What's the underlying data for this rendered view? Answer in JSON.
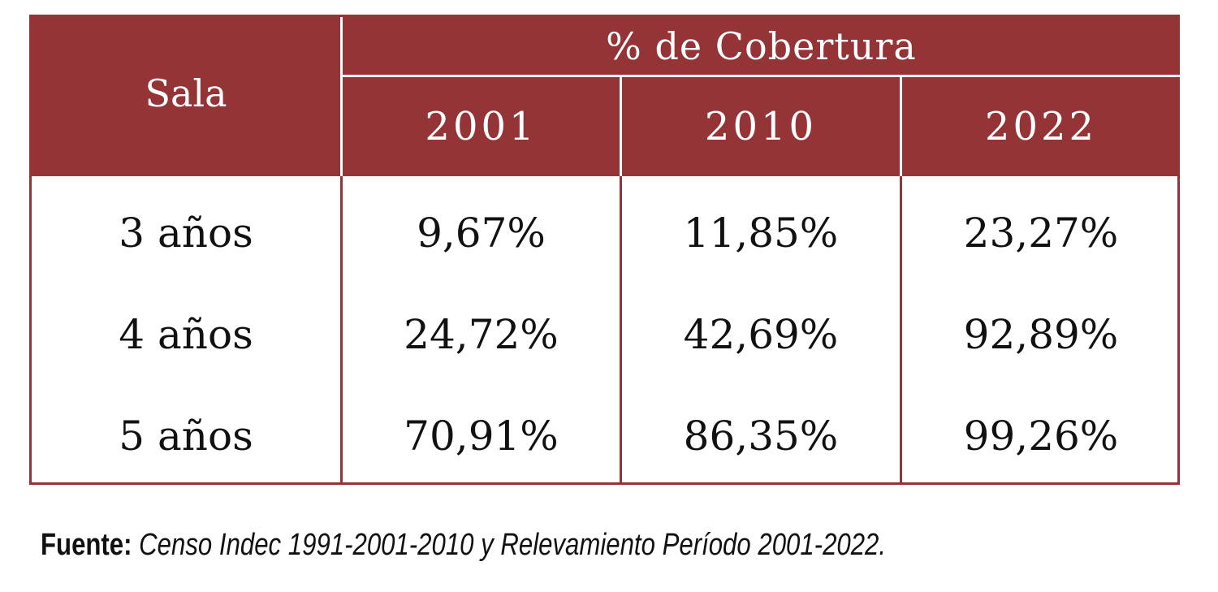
{
  "colors": {
    "header_bg": "#943436",
    "header_text": "#ffffff",
    "border": "#943436",
    "body_text": "#111111"
  },
  "table": {
    "row_header": "Sala",
    "group_header": "% de Cobertura",
    "years": [
      "2001",
      "2010",
      "2022"
    ],
    "rows": [
      {
        "label": "3 años",
        "values": [
          "9,67%",
          "11,85%",
          "23,27%"
        ]
      },
      {
        "label": "4 años",
        "values": [
          "24,72%",
          "42,69%",
          "92,89%"
        ]
      },
      {
        "label": "5 años",
        "values": [
          "70,91%",
          "86,35%",
          "99,26%"
        ]
      }
    ]
  },
  "source": {
    "label": "Fuente:",
    "text": "Censo Indec 1991-2001-2010 y Relevamiento Período 2001-2022."
  }
}
